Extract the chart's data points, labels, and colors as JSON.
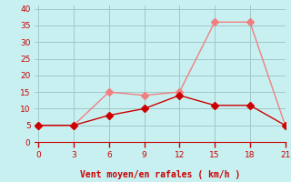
{
  "x": [
    0,
    3,
    6,
    9,
    12,
    15,
    18,
    21
  ],
  "rafales": [
    5,
    5,
    15,
    14,
    15,
    36,
    36,
    5
  ],
  "moyen": [
    5,
    5,
    8,
    10,
    14,
    11,
    11,
    5
  ],
  "color_rafales": "#f08080",
  "color_moyen": "#cc0000",
  "bg_color": "#c8f0f0",
  "grid_color": "#a0c8c8",
  "xlabel": "Vent moyen/en rafales ( km/h )",
  "xlabel_color": "#cc0000",
  "yticks": [
    0,
    5,
    10,
    15,
    20,
    25,
    30,
    35,
    40
  ],
  "xticks": [
    0,
    3,
    6,
    9,
    12,
    15,
    18,
    21
  ],
  "ylim": [
    0,
    41
  ],
  "xlim": [
    -0.3,
    21
  ],
  "tick_color": "#cc0000",
  "markersize": 4,
  "linewidth": 1.0
}
